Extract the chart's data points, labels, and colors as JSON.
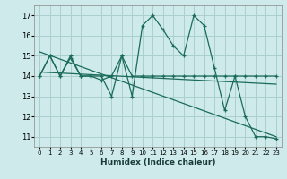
{
  "xlabel": "Humidex (Indice chaleur)",
  "background_color": "#ceeaea",
  "grid_color": "#aacfcf",
  "line_color": "#1a6b5a",
  "xlim": [
    -0.5,
    23.5
  ],
  "ylim": [
    10.5,
    17.5
  ],
  "yticks": [
    11,
    12,
    13,
    14,
    15,
    16,
    17
  ],
  "xticks": [
    0,
    1,
    2,
    3,
    4,
    5,
    6,
    7,
    8,
    9,
    10,
    11,
    12,
    13,
    14,
    15,
    16,
    17,
    18,
    19,
    20,
    21,
    22,
    23
  ],
  "series1_x": [
    0,
    1,
    2,
    3,
    4,
    5,
    6,
    7,
    8,
    9,
    10,
    11,
    12,
    13,
    14,
    15,
    16,
    17,
    18,
    19,
    20,
    21,
    22,
    23
  ],
  "series1_y": [
    14,
    15,
    14,
    15,
    14,
    14,
    14,
    13,
    15,
    13,
    16.5,
    17,
    16.3,
    15.5,
    15,
    17,
    16.5,
    14.4,
    12.3,
    14,
    12,
    11,
    11,
    10.9
  ],
  "series2_x": [
    0,
    1,
    2,
    3,
    4,
    5,
    6,
    7,
    8,
    9,
    10,
    11,
    12,
    13,
    14,
    15,
    16,
    17,
    18,
    19,
    20,
    21,
    22,
    23
  ],
  "series2_y": [
    14,
    15,
    14,
    14.9,
    14,
    14,
    13.8,
    14,
    15,
    14,
    14,
    14,
    14,
    14,
    14,
    14,
    14,
    14,
    14,
    14,
    14,
    14,
    14,
    14
  ],
  "trend1_x": [
    0,
    23
  ],
  "trend1_y": [
    15.2,
    11.0
  ],
  "trend2_x": [
    0,
    23
  ],
  "trend2_y": [
    14.2,
    13.6
  ]
}
